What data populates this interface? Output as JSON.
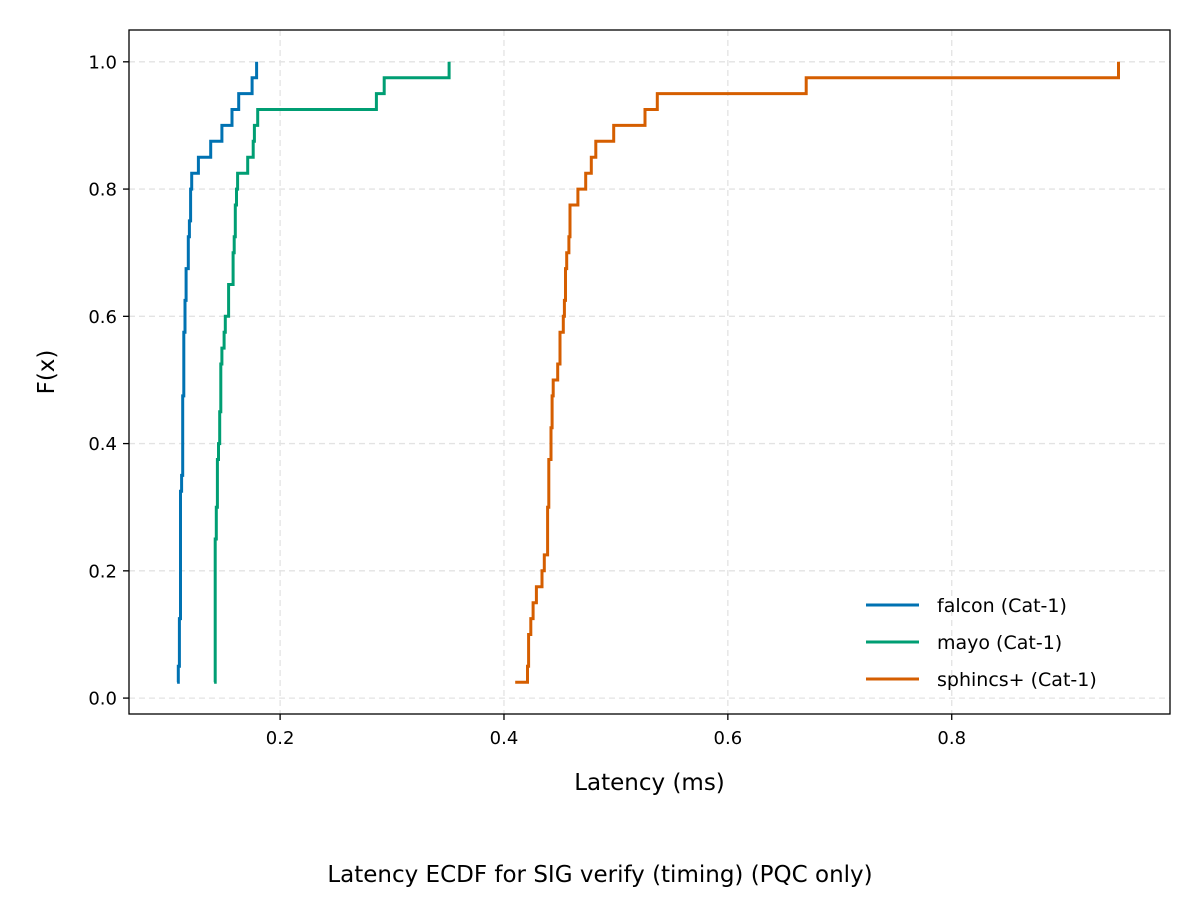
{
  "caption": "Latency ECDF for SIG verify (timing) (PQC only)",
  "chart_data": {
    "type": "line",
    "step": true,
    "title": "",
    "xlabel": "Latency (ms)",
    "ylabel": "F(x)",
    "xlim": [
      0.065,
      0.995
    ],
    "ylim": [
      -0.025,
      1.05
    ],
    "x_ticks": [
      0.2,
      0.4,
      0.6,
      0.8
    ],
    "x_tick_labels": [
      "0.2",
      "0.4",
      "0.6",
      "0.8"
    ],
    "y_ticks": [
      0.0,
      0.2,
      0.4,
      0.6,
      0.8,
      1.0
    ],
    "y_tick_labels": [
      "0.0",
      "0.2",
      "0.4",
      "0.6",
      "0.8",
      "1.0"
    ],
    "grid": true,
    "legend_position": "lower-right",
    "series": [
      {
        "name": "falcon (Cat-1)",
        "color": "#0072b2",
        "points": [
          [
            0.108,
            0.025
          ],
          [
            0.109,
            0.05
          ],
          [
            0.11,
            0.125
          ],
          [
            0.111,
            0.175
          ],
          [
            0.111,
            0.325
          ],
          [
            0.112,
            0.35
          ],
          [
            0.113,
            0.375
          ],
          [
            0.113,
            0.475
          ],
          [
            0.114,
            0.575
          ],
          [
            0.115,
            0.625
          ],
          [
            0.116,
            0.675
          ],
          [
            0.118,
            0.725
          ],
          [
            0.119,
            0.75
          ],
          [
            0.12,
            0.8
          ],
          [
            0.121,
            0.825
          ],
          [
            0.127,
            0.85
          ],
          [
            0.138,
            0.875
          ],
          [
            0.148,
            0.9
          ],
          [
            0.157,
            0.925
          ],
          [
            0.163,
            0.95
          ],
          [
            0.175,
            0.975
          ],
          [
            0.179,
            1.0
          ]
        ]
      },
      {
        "name": "mayo (Cat-1)",
        "color": "#009e73",
        "points": [
          [
            0.141,
            0.025
          ],
          [
            0.142,
            0.1
          ],
          [
            0.142,
            0.25
          ],
          [
            0.143,
            0.3
          ],
          [
            0.144,
            0.375
          ],
          [
            0.145,
            0.4
          ],
          [
            0.146,
            0.45
          ],
          [
            0.147,
            0.525
          ],
          [
            0.148,
            0.55
          ],
          [
            0.15,
            0.575
          ],
          [
            0.151,
            0.6
          ],
          [
            0.154,
            0.65
          ],
          [
            0.158,
            0.7
          ],
          [
            0.159,
            0.725
          ],
          [
            0.16,
            0.775
          ],
          [
            0.161,
            0.8
          ],
          [
            0.162,
            0.825
          ],
          [
            0.171,
            0.85
          ],
          [
            0.176,
            0.875
          ],
          [
            0.177,
            0.9
          ],
          [
            0.18,
            0.925
          ],
          [
            0.286,
            0.95
          ],
          [
            0.293,
            0.975
          ],
          [
            0.351,
            1.0
          ]
        ]
      },
      {
        "name": "sphincs+ (Cat-1)",
        "color": "#d55e00",
        "points": [
          [
            0.41,
            0.025
          ],
          [
            0.421,
            0.05
          ],
          [
            0.422,
            0.1
          ],
          [
            0.424,
            0.125
          ],
          [
            0.426,
            0.15
          ],
          [
            0.429,
            0.175
          ],
          [
            0.434,
            0.2
          ],
          [
            0.436,
            0.225
          ],
          [
            0.439,
            0.3
          ],
          [
            0.44,
            0.375
          ],
          [
            0.442,
            0.425
          ],
          [
            0.443,
            0.475
          ],
          [
            0.444,
            0.5
          ],
          [
            0.448,
            0.525
          ],
          [
            0.45,
            0.575
          ],
          [
            0.453,
            0.6
          ],
          [
            0.454,
            0.625
          ],
          [
            0.455,
            0.675
          ],
          [
            0.456,
            0.7
          ],
          [
            0.458,
            0.725
          ],
          [
            0.459,
            0.775
          ],
          [
            0.466,
            0.8
          ],
          [
            0.473,
            0.825
          ],
          [
            0.478,
            0.85
          ],
          [
            0.482,
            0.875
          ],
          [
            0.498,
            0.9
          ],
          [
            0.526,
            0.925
          ],
          [
            0.537,
            0.95
          ],
          [
            0.67,
            0.975
          ],
          [
            0.949,
            1.0
          ]
        ]
      }
    ]
  }
}
